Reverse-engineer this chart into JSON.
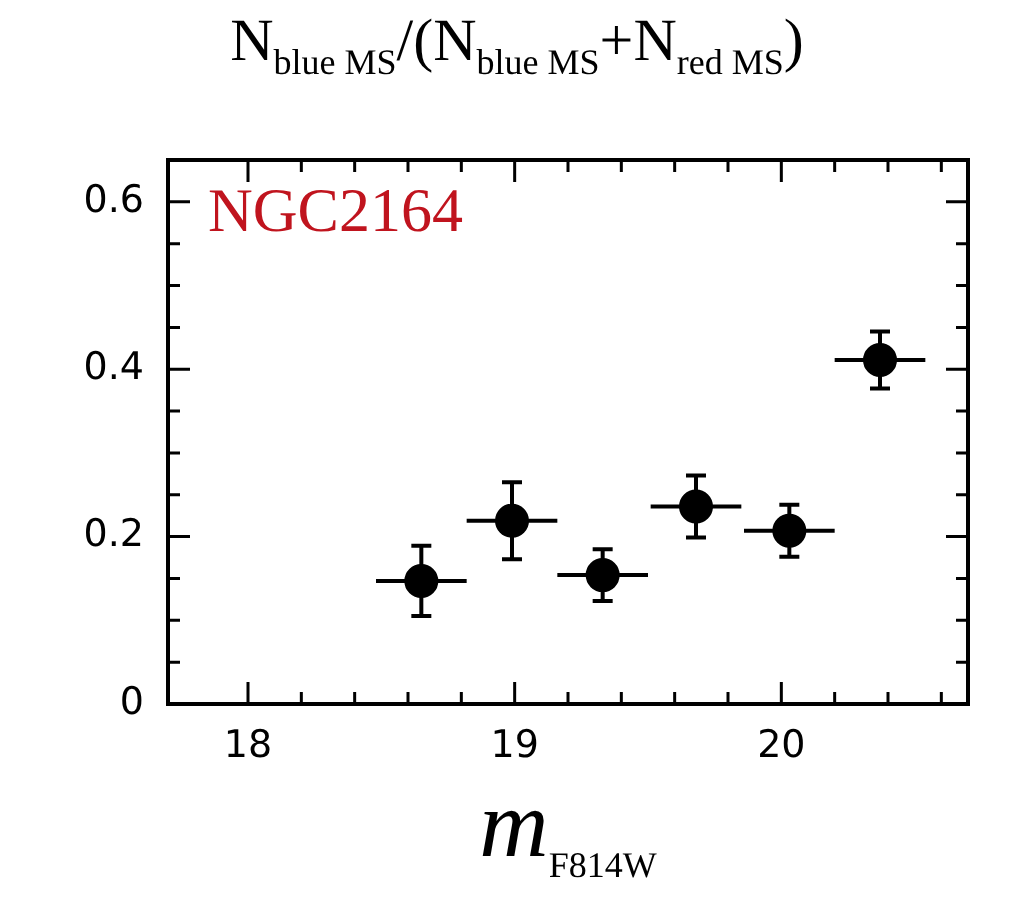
{
  "chart_data": {
    "type": "scatter",
    "ylabel": "N$_{blue MS}$/(N$_{blue MS}$+N$_{red MS}$)",
    "xlabel": "m$_{F814W}$",
    "annotations": [
      "NGC2164"
    ],
    "series": [
      {
        "color": "#000000",
        "x": [
          18.65,
          18.99,
          19.33,
          19.68,
          20.03,
          20.37
        ],
        "values": [
          0.147,
          0.219,
          0.154,
          0.236,
          0.207,
          0.411
        ],
        "errors": [
          0.042,
          0.046,
          0.031,
          0.037,
          0.031,
          0.034
        ],
        "xerrors": [
          0.17,
          0.17,
          0.17,
          0.17,
          0.17,
          0.17
        ]
      }
    ],
    "xlim": [
      17.7,
      20.7
    ],
    "xticks": [
      18,
      {
        "value": 18.2,
        "label": null
      },
      {
        "value": 18.4,
        "label": null
      },
      {
        "value": 18.6,
        "label": null
      },
      {
        "value": 18.8,
        "label": null
      },
      19,
      {
        "value": 19.2,
        "label": null
      },
      {
        "value": 19.4,
        "label": null
      },
      {
        "value": 19.6,
        "label": null
      },
      {
        "value": 19.8,
        "label": null
      },
      20,
      {
        "value": 20.2,
        "label": null
      },
      {
        "value": 20.4,
        "label": null
      },
      {
        "value": 20.6,
        "label": null
      }
    ],
    "ylim": [
      0,
      0.65
    ],
    "yticks": [
      0,
      {
        "value": 0.05,
        "label": null
      },
      {
        "value": 0.1,
        "label": null
      },
      {
        "value": 0.15,
        "label": null
      },
      0.2,
      {
        "value": 0.25,
        "label": null
      },
      {
        "value": 0.3,
        "label": null
      },
      {
        "value": 0.35,
        "label": null
      },
      0.4,
      {
        "value": 0.45,
        "label": null
      },
      {
        "value": 0.5,
        "label": null
      },
      {
        "value": 0.55,
        "label": null
      },
      0.6
    ],
    "grid": false,
    "legend": false,
    "marker": "circle"
  }
}
